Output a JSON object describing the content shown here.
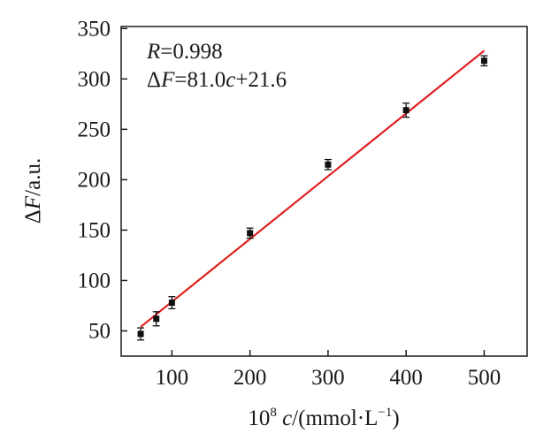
{
  "chart_data": {
    "type": "scatter",
    "xlabel": {
      "prefix": "10",
      "exp": "8",
      "var": " c",
      "unit_open": "/(mmol·L",
      "unit_exp": "−1",
      "unit_close": ")"
    },
    "ylabel": {
      "prefix": "Δ",
      "var": "F",
      "unit": "/a.u."
    },
    "xlim": [
      35,
      555
    ],
    "ylim": [
      25,
      352
    ],
    "x_ticks": [
      100,
      200,
      300,
      400,
      500
    ],
    "y_ticks": [
      50,
      100,
      150,
      200,
      250,
      300,
      350
    ],
    "grid": false,
    "series": [
      {
        "points": [
          {
            "x": 60,
            "y": 47,
            "err": 6
          },
          {
            "x": 80,
            "y": 62,
            "err": 7
          },
          {
            "x": 100,
            "y": 78,
            "err": 6
          },
          {
            "x": 200,
            "y": 147,
            "err": 5
          },
          {
            "x": 300,
            "y": 215,
            "err": 5
          },
          {
            "x": 400,
            "y": 269,
            "err": 7
          },
          {
            "x": 500,
            "y": 318,
            "err": 5
          }
        ]
      }
    ],
    "fit": {
      "x_start": 60,
      "x_end": 500,
      "y_start": 54,
      "y_end": 328,
      "color": "#e02020"
    },
    "annotations": {
      "r": {
        "var": "R",
        "text": "=0.998"
      },
      "eq": {
        "delta": "Δ",
        "var1": "F",
        "mid": "=81.0",
        "var2": "c",
        "tail": "+21.6"
      }
    },
    "colors": {
      "points": "#111111",
      "fit": "#e02020",
      "axis": "#1a1a1a"
    }
  }
}
